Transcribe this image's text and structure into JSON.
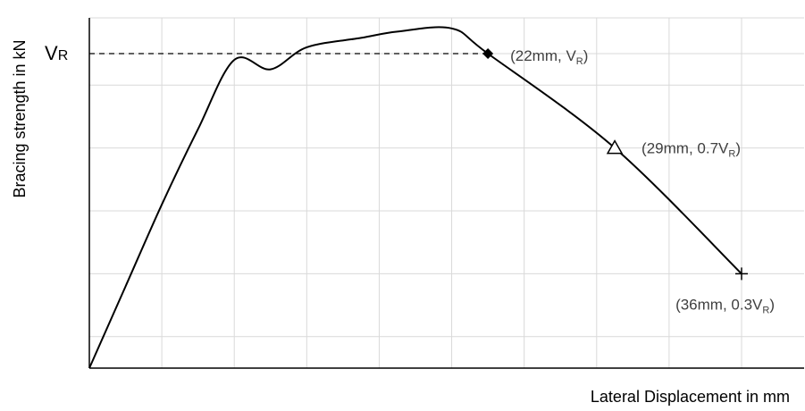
{
  "chart_data": {
    "type": "line",
    "title": "",
    "xlabel": "Lateral Displacement in mm",
    "ylabel": "Bracing strength in kN",
    "xlim": [
      0,
      36
    ],
    "ylim": [
      0,
      1.08
    ],
    "grid": true,
    "legend": "none",
    "x_gridlines": [
      4,
      8,
      12,
      16,
      20,
      24,
      28,
      32,
      36
    ],
    "y_gridlines": [
      0.1,
      0.3,
      0.5,
      0.7,
      0.9,
      1.0
    ],
    "y_ticks": [
      {
        "value": 1.0,
        "label_main": "V",
        "label_sub": "R"
      }
    ],
    "series": [
      {
        "color": "#000000",
        "points": [
          [
            0,
            0
          ],
          [
            2,
            0.26
          ],
          [
            4,
            0.52
          ],
          [
            6,
            0.76
          ],
          [
            8,
            0.98
          ],
          [
            10,
            0.95
          ],
          [
            12,
            1.02
          ],
          [
            15,
            1.05
          ],
          [
            17,
            1.07
          ],
          [
            20,
            1.08
          ],
          [
            22,
            1.0
          ],
          [
            29,
            0.7
          ],
          [
            36,
            0.3
          ]
        ]
      }
    ],
    "reference_line": {
      "style": "dashed",
      "from": [
        0,
        1.0
      ],
      "to": [
        22,
        1.0
      ]
    },
    "annotations": [
      {
        "x": 22,
        "y": 1.0,
        "marker": "diamond",
        "text": "(22mm, V",
        "sub": "R",
        "text_after": ")"
      },
      {
        "x": 29,
        "y": 0.7,
        "marker": "triangle",
        "text": "(29mm, 0.7V",
        "sub": "R",
        "text_after": ")"
      },
      {
        "x": 36,
        "y": 0.3,
        "marker": "plus",
        "text": "(36mm, 0.3V",
        "sub": "R",
        "text_after": ")"
      }
    ]
  }
}
